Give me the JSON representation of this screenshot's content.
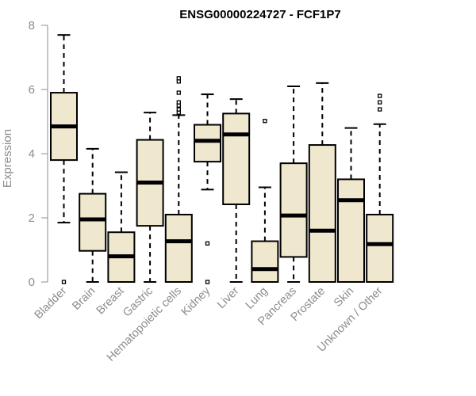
{
  "chart_data": {
    "type": "boxplot",
    "title": "ENSG00000224727 - FCF1P7",
    "ylabel": "Expression",
    "xlabel": "",
    "ylim": [
      0,
      8
    ],
    "yticks": [
      0,
      2,
      4,
      6,
      8
    ],
    "grid": false,
    "categories": [
      "Bladder",
      "Brain",
      "Breast",
      "Gastric",
      "Hematopoietic cells",
      "Kidney",
      "Liver",
      "Lung",
      "Pancreas",
      "Prostate",
      "Skin",
      "Unknown / Other"
    ],
    "boxes": [
      {
        "category": "Bladder",
        "whisker_low": 1.85,
        "q1": 3.8,
        "median": 4.85,
        "q3": 5.9,
        "whisker_high": 7.7,
        "outliers": [
          0
        ]
      },
      {
        "category": "Brain",
        "whisker_low": 0,
        "q1": 0.97,
        "median": 1.95,
        "q3": 2.75,
        "whisker_high": 4.15,
        "outliers": []
      },
      {
        "category": "Breast",
        "whisker_low": 0,
        "q1": 0,
        "median": 0.8,
        "q3": 1.55,
        "whisker_high": 3.42,
        "outliers": []
      },
      {
        "category": "Gastric",
        "whisker_low": 0,
        "q1": 1.75,
        "median": 3.1,
        "q3": 4.43,
        "whisker_high": 5.28,
        "outliers": []
      },
      {
        "category": "Hematopoietic cells",
        "whisker_low": 0,
        "q1": 0,
        "median": 1.27,
        "q3": 2.1,
        "whisker_high": 5.2,
        "outliers": [
          5.28,
          5.38,
          5.5,
          5.6,
          5.9,
          6.25,
          6.35
        ]
      },
      {
        "category": "Kidney",
        "whisker_low": 2.88,
        "q1": 3.75,
        "median": 4.4,
        "q3": 4.9,
        "whisker_high": 5.85,
        "outliers": [
          1.2,
          0
        ]
      },
      {
        "category": "Liver",
        "whisker_low": 0,
        "q1": 2.42,
        "median": 4.6,
        "q3": 5.25,
        "whisker_high": 5.7,
        "outliers": []
      },
      {
        "category": "Lung",
        "whisker_low": 0,
        "q1": 0,
        "median": 0.4,
        "q3": 1.27,
        "whisker_high": 2.95,
        "outliers": [
          5.02
        ]
      },
      {
        "category": "Pancreas",
        "whisker_low": 0,
        "q1": 0.78,
        "median": 2.07,
        "q3": 3.7,
        "whisker_high": 6.1,
        "outliers": []
      },
      {
        "category": "Prostate",
        "whisker_low": 0,
        "q1": 0,
        "median": 1.6,
        "q3": 4.27,
        "whisker_high": 6.2,
        "outliers": []
      },
      {
        "category": "Skin",
        "whisker_low": 0,
        "q1": 0,
        "median": 2.55,
        "q3": 3.2,
        "whisker_high": 4.8,
        "outliers": []
      },
      {
        "category": "Unknown / Other",
        "whisker_low": 0,
        "q1": 0,
        "median": 1.18,
        "q3": 2.1,
        "whisker_high": 4.92,
        "outliers": [
          5.38,
          5.6,
          5.8
        ]
      }
    ],
    "colors": {
      "box_fill": "#efe8cf",
      "stroke": "#000000",
      "axis": "#8c8c8c"
    }
  }
}
